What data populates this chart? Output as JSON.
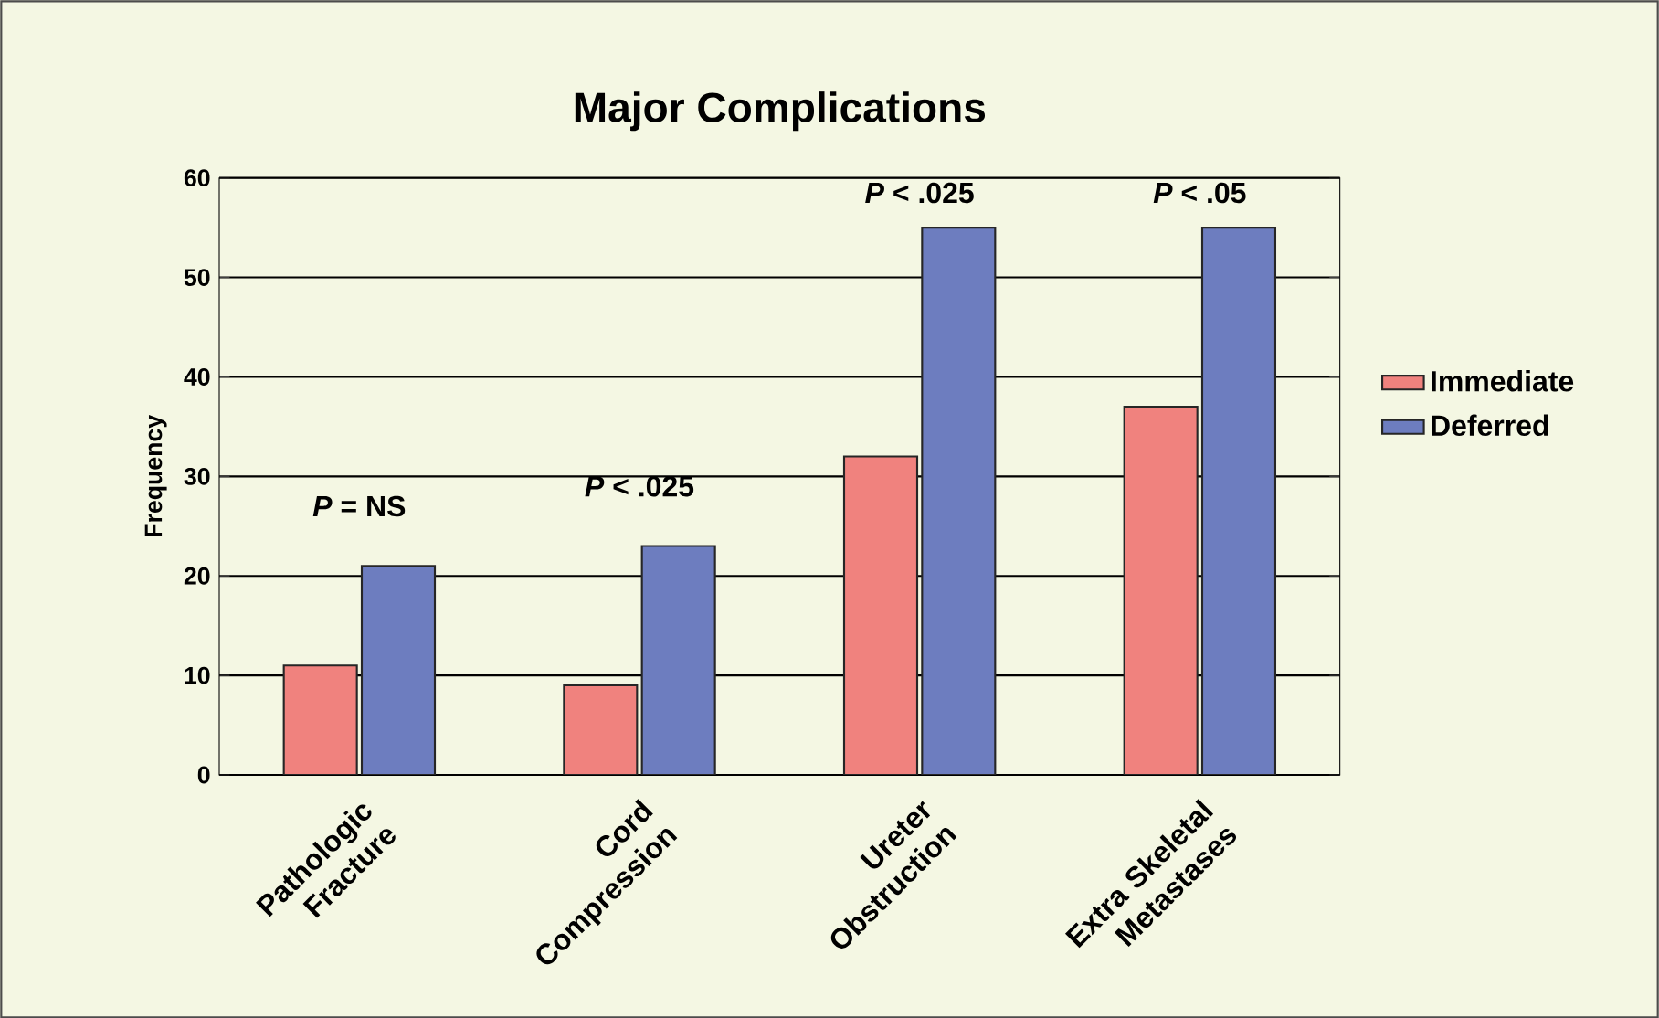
{
  "chart_data": {
    "type": "bar",
    "title": "Major Complications",
    "ylabel": "Frequency",
    "categories": [
      "Pathologic Fracture",
      "Cord Compression",
      "Ureter Obstruction",
      "Extra Skeletal Metastases"
    ],
    "series": [
      {
        "name": "Immediate",
        "color": "#f0827e",
        "values": [
          11,
          9,
          32,
          37
        ]
      },
      {
        "name": "Deferred",
        "color": "#6d7dbf",
        "values": [
          21,
          23,
          55,
          55
        ]
      }
    ],
    "ylim": [
      0,
      60
    ],
    "yticks": [
      0,
      10,
      20,
      30,
      40,
      50,
      60
    ],
    "grid": "y",
    "legend": "right",
    "annotations": [
      "*P* = NS",
      "*P* < .025",
      "*P* < .025",
      "*P* < .05"
    ]
  }
}
